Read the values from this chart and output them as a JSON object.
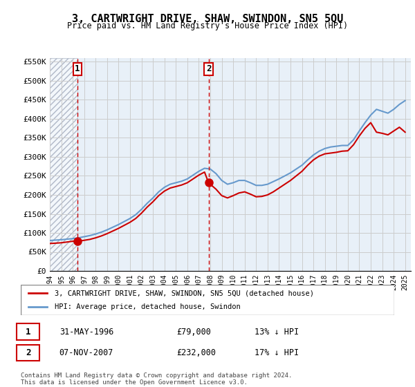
{
  "title": "3, CARTWRIGHT DRIVE, SHAW, SWINDON, SN5 5QU",
  "subtitle": "Price paid vs. HM Land Registry's House Price Index (HPI)",
  "legend_line1": "3, CARTWRIGHT DRIVE, SHAW, SWINDON, SN5 5QU (detached house)",
  "legend_line2": "HPI: Average price, detached house, Swindon",
  "footnote1": "Contains HM Land Registry data © Crown copyright and database right 2024.",
  "footnote2": "This data is licensed under the Open Government Licence v3.0.",
  "transaction1_label": "1",
  "transaction1_date": "31-MAY-1996",
  "transaction1_price": "£79,000",
  "transaction1_hpi": "13% ↓ HPI",
  "transaction2_label": "2",
  "transaction2_date": "07-NOV-2007",
  "transaction2_price": "£232,000",
  "transaction2_hpi": "17% ↓ HPI",
  "ylabel": "",
  "xlim_start": 1994.0,
  "xlim_end": 2025.5,
  "ylim_bottom": 0,
  "ylim_top": 560000,
  "yticks": [
    0,
    50000,
    100000,
    150000,
    200000,
    250000,
    300000,
    350000,
    400000,
    450000,
    500000,
    550000
  ],
  "ytick_labels": [
    "£0",
    "£50K",
    "£100K",
    "£150K",
    "£200K",
    "£250K",
    "£300K",
    "£350K",
    "£400K",
    "£450K",
    "£500K",
    "£550K"
  ],
  "hpi_color": "#6699cc",
  "price_color": "#cc0000",
  "marker_color": "#cc0000",
  "vline_color": "#cc0000",
  "grid_color": "#cccccc",
  "bg_color": "#e8f0f8",
  "hatch_color": "#d0d8e8",
  "transaction1_x": 1996.42,
  "transaction2_x": 2007.85,
  "hpi_x": [
    1994,
    1994.5,
    1995,
    1995.5,
    1996,
    1996.5,
    1997,
    1997.5,
    1998,
    1998.5,
    1999,
    1999.5,
    2000,
    2000.5,
    2001,
    2001.5,
    2002,
    2002.5,
    2003,
    2003.5,
    2004,
    2004.5,
    2005,
    2005.5,
    2006,
    2006.5,
    2007,
    2007.5,
    2008,
    2008.5,
    2009,
    2009.5,
    2010,
    2010.5,
    2011,
    2011.5,
    2012,
    2012.5,
    2013,
    2013.5,
    2014,
    2014.5,
    2015,
    2015.5,
    2016,
    2016.5,
    2017,
    2017.5,
    2018,
    2018.5,
    2019,
    2019.5,
    2020,
    2020.5,
    2021,
    2021.5,
    2022,
    2022.5,
    2023,
    2023.5,
    2024,
    2024.5,
    2025
  ],
  "hpi_y": [
    80000,
    81000,
    82000,
    83500,
    85000,
    87000,
    90000,
    93000,
    97000,
    102000,
    108000,
    115000,
    122000,
    130000,
    138000,
    148000,
    162000,
    178000,
    192000,
    208000,
    220000,
    228000,
    232000,
    236000,
    242000,
    252000,
    262000,
    270000,
    268000,
    256000,
    238000,
    228000,
    232000,
    238000,
    238000,
    232000,
    225000,
    225000,
    228000,
    235000,
    242000,
    250000,
    258000,
    268000,
    278000,
    292000,
    305000,
    315000,
    322000,
    326000,
    328000,
    330000,
    330000,
    345000,
    368000,
    390000,
    410000,
    425000,
    420000,
    415000,
    425000,
    438000,
    448000
  ],
  "price_x": [
    1994.0,
    1994.5,
    1995.0,
    1995.5,
    1996.0,
    1996.42,
    1996.9,
    1997.5,
    1998.0,
    1998.5,
    1999.0,
    1999.5,
    2000.0,
    2000.5,
    2001.0,
    2001.5,
    2002.0,
    2002.5,
    2003.0,
    2003.5,
    2004.0,
    2004.5,
    2005.0,
    2005.5,
    2006.0,
    2006.5,
    2007.0,
    2007.5,
    2007.85,
    2008.5,
    2009.0,
    2009.5,
    2010.0,
    2010.5,
    2011.0,
    2011.5,
    2012.0,
    2012.5,
    2013.0,
    2013.5,
    2014.0,
    2014.5,
    2015.0,
    2015.5,
    2016.0,
    2016.5,
    2017.0,
    2017.5,
    2018.0,
    2018.5,
    2019.0,
    2019.5,
    2020.0,
    2020.5,
    2021.0,
    2021.5,
    2022.0,
    2022.5,
    2023.0,
    2023.5,
    2024.0,
    2024.5,
    2025.0
  ],
  "price_y": [
    72000,
    73000,
    74000,
    76000,
    78000,
    79000,
    80000,
    83000,
    87000,
    92000,
    98000,
    105000,
    112000,
    120000,
    128000,
    138000,
    152000,
    168000,
    182000,
    198000,
    210000,
    218000,
    222000,
    226000,
    232000,
    242000,
    252000,
    260000,
    232000,
    215000,
    198000,
    192000,
    198000,
    205000,
    208000,
    202000,
    195000,
    196000,
    200000,
    208000,
    218000,
    228000,
    238000,
    250000,
    262000,
    278000,
    292000,
    302000,
    308000,
    310000,
    312000,
    315000,
    316000,
    332000,
    355000,
    375000,
    390000,
    365000,
    362000,
    358000,
    368000,
    378000,
    365000
  ]
}
